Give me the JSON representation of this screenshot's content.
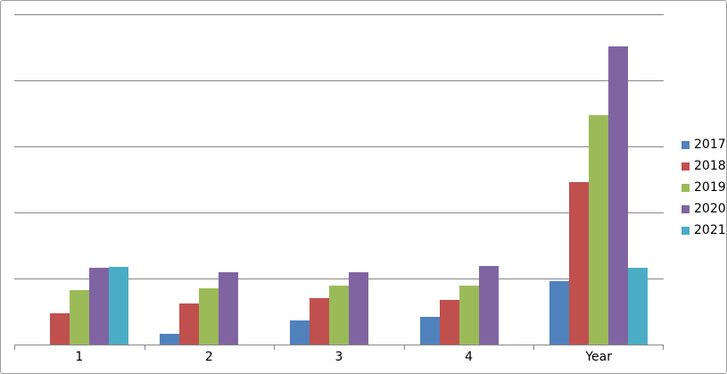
{
  "chart_data": {
    "type": "bar",
    "title": "",
    "xlabel": "",
    "ylabel": "",
    "categories": [
      "1",
      "2",
      "3",
      "4",
      "Year"
    ],
    "series": [
      {
        "name": "2017",
        "color": "#4F81BD",
        "values": [
          0,
          0.16,
          0.36,
          0.42,
          0.96
        ]
      },
      {
        "name": "2018",
        "color": "#C0504D",
        "values": [
          0.47,
          0.62,
          0.7,
          0.68,
          2.46
        ]
      },
      {
        "name": "2019",
        "color": "#9BBB59",
        "values": [
          0.82,
          0.85,
          0.89,
          0.89,
          3.47
        ]
      },
      {
        "name": "2020",
        "color": "#8064A2",
        "values": [
          1.16,
          1.09,
          1.09,
          1.19,
          4.52
        ]
      },
      {
        "name": "2021",
        "color": "#4BACC6",
        "values": [
          1.17,
          0,
          0,
          0,
          1.16
        ]
      }
    ],
    "ylim": [
      0,
      5
    ],
    "gridline_count": 5,
    "grid": true,
    "y_axis_labels_visible": false,
    "legend_position": "right",
    "legend_entries": [
      "2017",
      "2018",
      "2019",
      "2020",
      "2021"
    ]
  },
  "appearance": {
    "gridline_color": "#878787",
    "axis_color": "#878787",
    "border_color": "#9d9d9d",
    "background_color": "#ffffff",
    "text_color": "#000000"
  }
}
